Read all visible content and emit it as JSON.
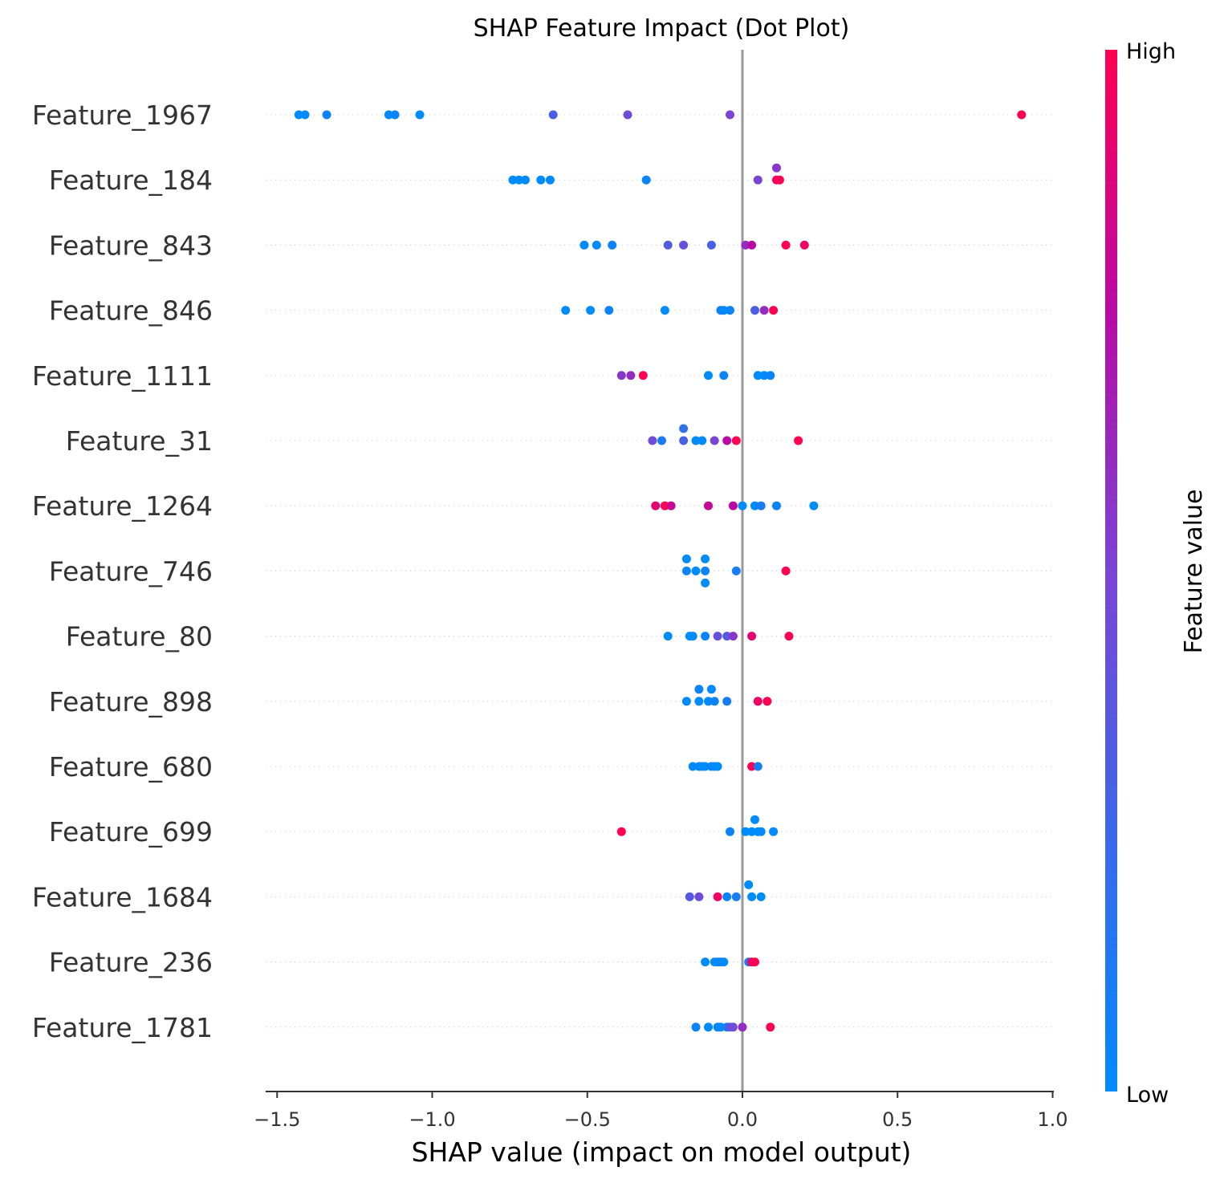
{
  "chart_data": {
    "type": "scatter",
    "title": "SHAP Feature Impact (Dot Plot)",
    "xlabel": "SHAP value (impact on model output)",
    "xlim": [
      -1.54,
      1.0
    ],
    "xticks": [
      {
        "value": -1.5,
        "label": "−1.5"
      },
      {
        "value": -1.0,
        "label": "−1.0"
      },
      {
        "value": -0.5,
        "label": "−0.5"
      },
      {
        "value": 0.0,
        "label": "0.0"
      },
      {
        "value": 0.5,
        "label": "0.5"
      },
      {
        "value": 1.0,
        "label": "1.0"
      }
    ],
    "colorbar": {
      "title": "Feature value",
      "high_label": "High",
      "low_label": "Low",
      "low_color": "#008bfb",
      "high_color": "#ff0052"
    },
    "zero_line_color": "#999999",
    "features": [
      {
        "name": "Feature_1967",
        "points": [
          [
            -1.43,
            0.0,
            0
          ],
          [
            -1.41,
            0.0,
            0
          ],
          [
            -1.34,
            0.0,
            0.05
          ],
          [
            -1.14,
            0.0,
            0
          ],
          [
            -1.12,
            0.0,
            0.05
          ],
          [
            -1.04,
            0.0,
            0
          ],
          [
            -0.61,
            0.0,
            0.3
          ],
          [
            -0.37,
            0.0,
            0.45
          ],
          [
            -0.04,
            0.0,
            0.5
          ],
          [
            0.9,
            0.0,
            1
          ]
        ]
      },
      {
        "name": "Feature_184",
        "points": [
          [
            -0.74,
            0.0,
            0
          ],
          [
            -0.72,
            0.0,
            0
          ],
          [
            -0.7,
            0.0,
            0
          ],
          [
            -0.65,
            0.0,
            0
          ],
          [
            -0.62,
            0.0,
            0
          ],
          [
            -0.31,
            0.0,
            0.05
          ],
          [
            0.05,
            0.0,
            0.5
          ],
          [
            0.11,
            1.0,
            0.55
          ],
          [
            0.11,
            0.0,
            0.95
          ],
          [
            0.12,
            0.0,
            1
          ]
        ]
      },
      {
        "name": "Feature_843",
        "points": [
          [
            -0.51,
            0.0,
            0
          ],
          [
            -0.47,
            0.0,
            0
          ],
          [
            -0.42,
            0.0,
            0.05
          ],
          [
            -0.24,
            0.0,
            0.35
          ],
          [
            -0.19,
            0.0,
            0.4
          ],
          [
            -0.1,
            0.0,
            0.3
          ],
          [
            0.01,
            0.0,
            0.6
          ],
          [
            0.03,
            0.0,
            0.75
          ],
          [
            0.14,
            0.0,
            1
          ],
          [
            0.2,
            0.0,
            0.95
          ]
        ]
      },
      {
        "name": "Feature_846",
        "points": [
          [
            -0.57,
            0.0,
            0
          ],
          [
            -0.49,
            0.0,
            0
          ],
          [
            -0.43,
            0.0,
            0.05
          ],
          [
            -0.25,
            0.0,
            0
          ],
          [
            -0.07,
            0.0,
            0.1
          ],
          [
            -0.06,
            0.0,
            0
          ],
          [
            -0.04,
            0.0,
            0.05
          ],
          [
            0.04,
            0.0,
            0.3
          ],
          [
            0.07,
            0.0,
            0.6
          ],
          [
            0.1,
            0.0,
            1
          ]
        ]
      },
      {
        "name": "Feature_1111",
        "points": [
          [
            -0.39,
            0.0,
            0.55
          ],
          [
            -0.36,
            0.0,
            0.6
          ],
          [
            -0.32,
            0.0,
            1
          ],
          [
            -0.11,
            0.0,
            0
          ],
          [
            -0.06,
            0.0,
            0.05
          ],
          [
            0.05,
            0.0,
            0
          ],
          [
            0.07,
            0.0,
            0
          ],
          [
            0.09,
            0.0,
            0.05
          ]
        ]
      },
      {
        "name": "Feature_31",
        "points": [
          [
            -0.29,
            0.0,
            0.45
          ],
          [
            -0.26,
            0.0,
            0.1
          ],
          [
            -0.19,
            1.0,
            0.2
          ],
          [
            -0.19,
            0.0,
            0.3
          ],
          [
            -0.15,
            0.0,
            0
          ],
          [
            -0.13,
            0.0,
            0
          ],
          [
            -0.09,
            0.0,
            0.5
          ],
          [
            -0.05,
            0.0,
            0.75
          ],
          [
            -0.02,
            0.0,
            1
          ],
          [
            0.18,
            0.0,
            1
          ]
        ]
      },
      {
        "name": "Feature_1264",
        "points": [
          [
            -0.28,
            0.0,
            0.9
          ],
          [
            -0.25,
            0.0,
            1
          ],
          [
            -0.23,
            0.0,
            0.8
          ],
          [
            -0.11,
            0.0,
            0.8
          ],
          [
            -0.03,
            0.0,
            0.75
          ],
          [
            0.0,
            0.0,
            0
          ],
          [
            0.04,
            0.0,
            0
          ],
          [
            0.06,
            0.0,
            0.1
          ],
          [
            0.11,
            0.0,
            0.05
          ],
          [
            0.23,
            0.0,
            0
          ]
        ]
      },
      {
        "name": "Feature_746",
        "points": [
          [
            -0.18,
            1.0,
            0
          ],
          [
            -0.18,
            0.0,
            0.05
          ],
          [
            -0.15,
            0.0,
            0
          ],
          [
            -0.12,
            1.0,
            0
          ],
          [
            -0.12,
            0.0,
            0.05
          ],
          [
            -0.12,
            -1.0,
            0
          ],
          [
            -0.02,
            0.0,
            0.1
          ],
          [
            0.14,
            0.0,
            1
          ]
        ]
      },
      {
        "name": "Feature_80",
        "points": [
          [
            -0.24,
            0.0,
            0
          ],
          [
            -0.17,
            0.0,
            0
          ],
          [
            -0.16,
            0.0,
            0
          ],
          [
            -0.12,
            0.0,
            0.05
          ],
          [
            -0.08,
            0.0,
            0.4
          ],
          [
            -0.05,
            0.0,
            0.35
          ],
          [
            -0.03,
            0.0,
            0.55
          ],
          [
            0.03,
            0.0,
            0.9
          ],
          [
            0.15,
            0.0,
            1
          ]
        ]
      },
      {
        "name": "Feature_898",
        "points": [
          [
            -0.18,
            0.0,
            0
          ],
          [
            -0.14,
            1.0,
            0.05
          ],
          [
            -0.14,
            0.0,
            0
          ],
          [
            -0.1,
            1.0,
            0
          ],
          [
            -0.11,
            0.0,
            0
          ],
          [
            -0.09,
            0.0,
            0.05
          ],
          [
            -0.05,
            0.0,
            0.1
          ],
          [
            0.05,
            0.0,
            0.95
          ],
          [
            0.08,
            0.0,
            1
          ]
        ]
      },
      {
        "name": "Feature_680",
        "points": [
          [
            -0.16,
            0.0,
            0
          ],
          [
            -0.14,
            0.0,
            0.05
          ],
          [
            -0.13,
            0.0,
            0
          ],
          [
            -0.12,
            0.0,
            0
          ],
          [
            -0.1,
            0.0,
            0.05
          ],
          [
            -0.09,
            0.0,
            0
          ],
          [
            -0.08,
            0.0,
            0
          ],
          [
            0.03,
            0.0,
            1
          ],
          [
            0.05,
            0.0,
            0.1
          ]
        ]
      },
      {
        "name": "Feature_699",
        "points": [
          [
            -0.39,
            0.0,
            1
          ],
          [
            -0.04,
            0.0,
            0.05
          ],
          [
            0.01,
            0.0,
            0
          ],
          [
            0.04,
            1.0,
            0
          ],
          [
            0.03,
            0.0,
            0
          ],
          [
            0.05,
            0.0,
            0
          ],
          [
            0.06,
            0.0,
            0
          ],
          [
            0.1,
            0.0,
            0
          ]
        ]
      },
      {
        "name": "Feature_1684",
        "points": [
          [
            -0.17,
            0.0,
            0.35
          ],
          [
            -0.14,
            0.0,
            0.45
          ],
          [
            -0.08,
            0.0,
            0.95
          ],
          [
            -0.05,
            0.0,
            0.05
          ],
          [
            -0.02,
            0.0,
            0.1
          ],
          [
            0.02,
            1.0,
            0
          ],
          [
            0.03,
            0.0,
            0
          ],
          [
            0.06,
            0.0,
            0
          ]
        ]
      },
      {
        "name": "Feature_236",
        "points": [
          [
            -0.12,
            0.0,
            0
          ],
          [
            -0.09,
            0.0,
            0
          ],
          [
            -0.08,
            0.0,
            0
          ],
          [
            -0.07,
            0.0,
            0.05
          ],
          [
            -0.06,
            0.0,
            0
          ],
          [
            0.02,
            0.0,
            0.1
          ],
          [
            0.03,
            0.0,
            0.95
          ],
          [
            0.04,
            0.0,
            1
          ]
        ]
      },
      {
        "name": "Feature_1781",
        "points": [
          [
            -0.15,
            0.0,
            0.05
          ],
          [
            -0.11,
            0.0,
            0
          ],
          [
            -0.08,
            0.0,
            0.05
          ],
          [
            -0.07,
            0.0,
            0
          ],
          [
            -0.05,
            0.0,
            0.1
          ],
          [
            -0.04,
            0.0,
            0.35
          ],
          [
            -0.03,
            0.0,
            0.45
          ],
          [
            0.0,
            0.0,
            0.6
          ],
          [
            0.09,
            0.0,
            1
          ]
        ]
      }
    ]
  }
}
